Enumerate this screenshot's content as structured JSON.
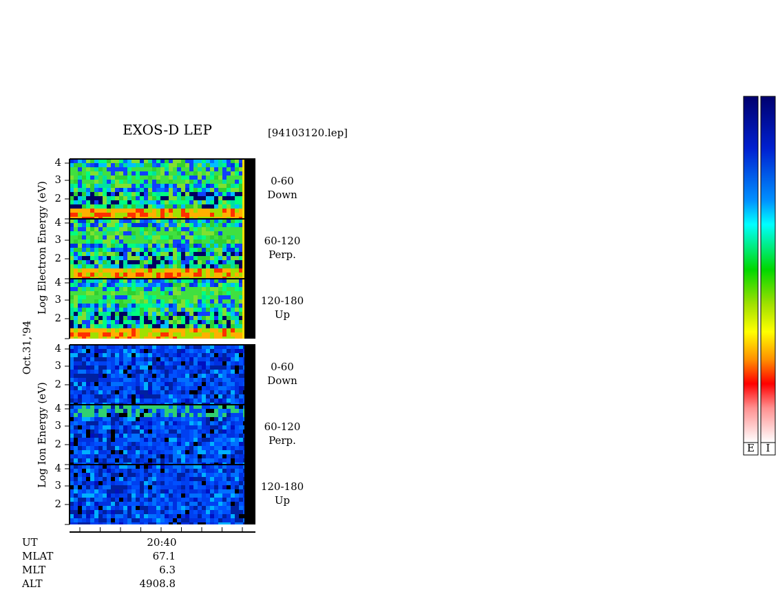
{
  "header": {
    "title": "EXOS-D LEP",
    "file": "[94103120.lep]"
  },
  "axes": {
    "electron_label": "Log Electron Energy (eV)",
    "date": "Oct.31,'94",
    "ion_label": "Log Ion Energy (eV)"
  },
  "panels": [
    {
      "species": "electron",
      "y_ticks": [
        "4",
        "3",
        "2"
      ],
      "range": "0-60",
      "direction": "Down"
    },
    {
      "species": "electron",
      "y_ticks": [
        "4",
        "3",
        "2"
      ],
      "range": "60-120",
      "direction": "Perp."
    },
    {
      "species": "electron",
      "y_ticks": [
        "4",
        "3",
        "2"
      ],
      "range": "120-180",
      "direction": "Up"
    },
    {
      "species": "ion",
      "y_ticks": [
        "4",
        "3",
        "2"
      ],
      "range": "0-60",
      "direction": "Down"
    },
    {
      "species": "ion",
      "y_ticks": [
        "4",
        "3",
        "2"
      ],
      "range": "60-120",
      "direction": "Perp."
    },
    {
      "species": "ion",
      "y_ticks": [
        "4",
        "3",
        "2"
      ],
      "range": "120-180",
      "direction": "Up"
    }
  ],
  "footer": {
    "rows": [
      [
        "UT",
        "20:40"
      ],
      [
        "MLAT",
        "67.1"
      ],
      [
        "MLT",
        "6.3"
      ],
      [
        "ALT",
        "4908.8"
      ]
    ]
  },
  "colorbars": [
    "E",
    "I"
  ]
}
